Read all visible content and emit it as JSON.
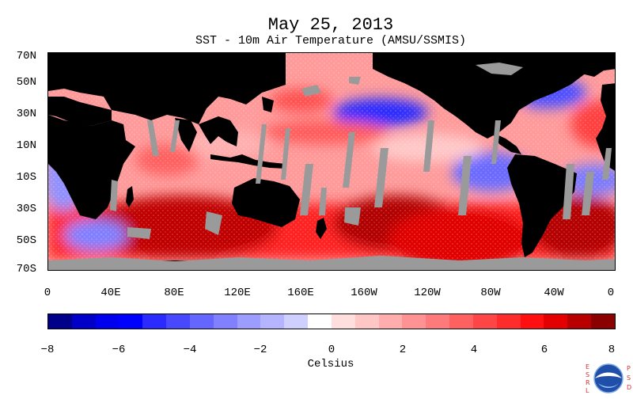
{
  "title": "May 25, 2013",
  "subtitle": "SST - 10m Air Temperature (AMSU/SSMIS)",
  "y_axis_labels": [
    "70N",
    "50N",
    "30N",
    "10N",
    "10S",
    "30S",
    "50S",
    "70S"
  ],
  "x_axis_labels": [
    "0",
    "40E",
    "80E",
    "120E",
    "160E",
    "160W",
    "120W",
    "80W",
    "40W",
    "0"
  ],
  "colorbar": {
    "label": "Celsius",
    "ticks": [
      "−8",
      "−6",
      "−4",
      "−2",
      "0",
      "2",
      "4",
      "6",
      "8"
    ],
    "colors": [
      "#00008b",
      "#0000c8",
      "#0000ee",
      "#0000ff",
      "#2b2bff",
      "#4848ff",
      "#6565ff",
      "#8181ff",
      "#9d9dff",
      "#b5b5ff",
      "#d0d0ff",
      "#ffffff",
      "#ffdede",
      "#ffc6c6",
      "#ffadad",
      "#ff9393",
      "#ff7a7a",
      "#ff6060",
      "#ff4646",
      "#ff2c2c",
      "#ff0f0f",
      "#e40000",
      "#b80000",
      "#8b0000"
    ]
  },
  "logo": {
    "icon": "noaa-logo-icon",
    "side_left": "ESRL",
    "side_right": "PSD"
  }
}
